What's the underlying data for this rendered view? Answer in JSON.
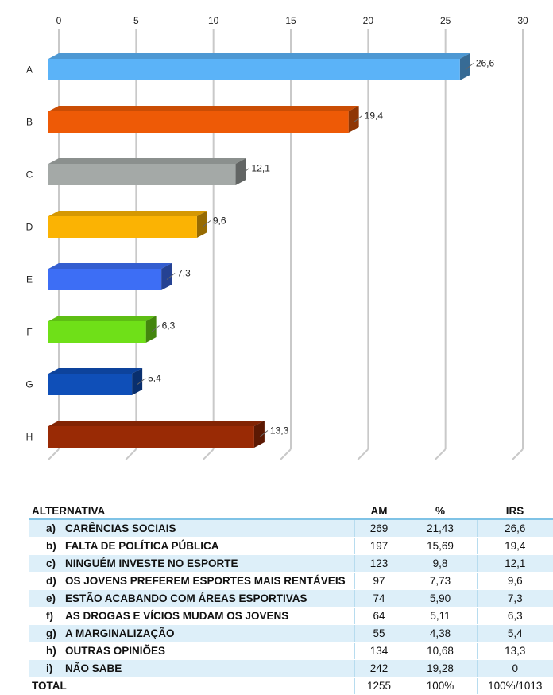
{
  "chart_data": {
    "type": "bar",
    "orientation": "horizontal",
    "categories": [
      "A",
      "B",
      "C",
      "D",
      "E",
      "F",
      "G",
      "H"
    ],
    "values": [
      26.6,
      19.4,
      12.1,
      9.6,
      7.3,
      6.3,
      5.4,
      13.3
    ],
    "value_labels": [
      "26,6",
      "19,4",
      "12,1",
      "9,6",
      "7,3",
      "6,3",
      "5,4",
      "13,3"
    ],
    "colors": [
      "#5bb3f8",
      "#ee5a06",
      "#a4a9a7",
      "#fbb303",
      "#3d6ef5",
      "#6fe018",
      "#0f4fb8",
      "#992a05"
    ],
    "xlim": [
      0,
      30
    ],
    "xticks": [
      0,
      5,
      10,
      15,
      20,
      25,
      30
    ],
    "xtick_labels": [
      "0",
      "5",
      "10",
      "15",
      "20",
      "25",
      "30"
    ],
    "grid": true,
    "style": "3d"
  },
  "table": {
    "headers": {
      "alternativa": "ALTERNATIVA",
      "am": "AM",
      "pct": "%",
      "irs": "IRS"
    },
    "rows": [
      {
        "letter": "a)",
        "text": "CARÊNCIAS SOCIAIS",
        "am": "269",
        "pct": "21,43",
        "irs": "26,6"
      },
      {
        "letter": "b)",
        "text": "FALTA DE POLÍTICA PÚBLICA",
        "am": "197",
        "pct": "15,69",
        "irs": "19,4"
      },
      {
        "letter": "c)",
        "text": "NINGUÉM INVESTE NO ESPORTE",
        "am": "123",
        "pct": "9,8",
        "irs": "12,1"
      },
      {
        "letter": "d)",
        "text": "OS JOVENS PREFEREM ESPORTES MAIS RENTÁVEIS",
        "am": "97",
        "pct": "7,73",
        "irs": "9,6"
      },
      {
        "letter": "e)",
        "text": "ESTÃO ACABANDO COM ÁREAS ESPORTIVAS",
        "am": "74",
        "pct": "5,90",
        "irs": "7,3"
      },
      {
        "letter": "f)",
        "text": "AS DROGAS E VÍCIOS MUDAM OS JOVENS",
        "am": "64",
        "pct": "5,11",
        "irs": "6,3"
      },
      {
        "letter": "g)",
        "text": "A MARGINALIZAÇÃO",
        "am": "55",
        "pct": "4,38",
        "irs": "5,4"
      },
      {
        "letter": "h)",
        "text": "OUTRAS OPINIÕES",
        "am": "134",
        "pct": "10,68",
        "irs": "13,3"
      },
      {
        "letter": "i)",
        "text": "NÃO SABE",
        "am": "242",
        "pct": "19,28",
        "irs": "0"
      }
    ],
    "total": {
      "label": "TOTAL",
      "am": "1255",
      "pct": "100%",
      "irs": "100%/1013"
    }
  }
}
